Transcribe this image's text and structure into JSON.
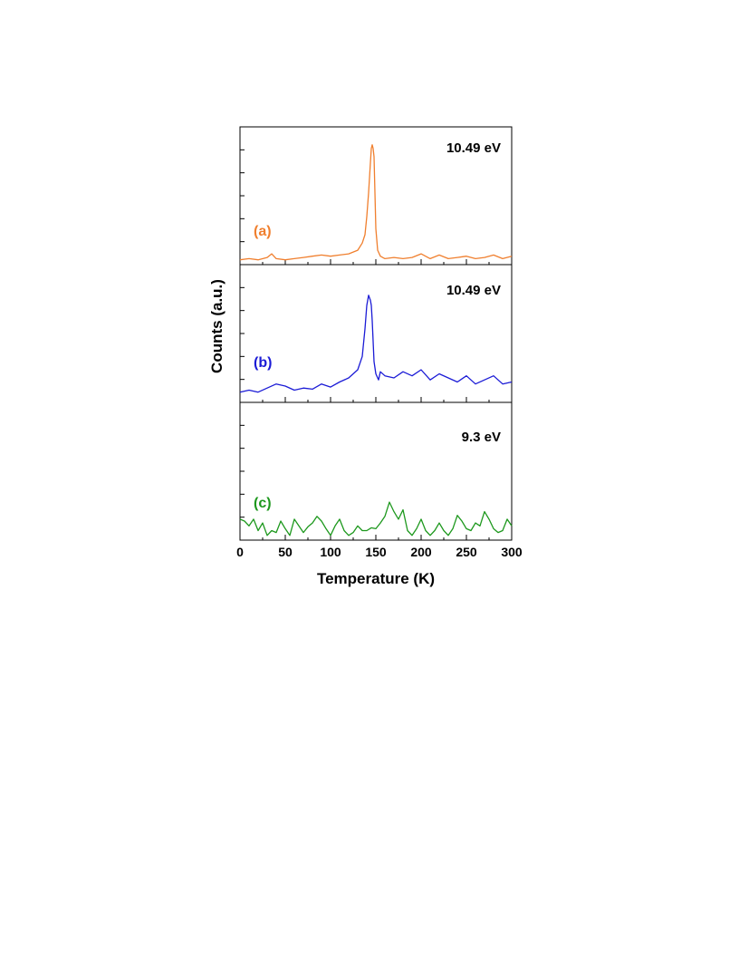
{
  "chart_data": {
    "type": "line",
    "xlabel": "Temperature (K)",
    "ylabel": "Counts (a.u.)",
    "xlim": [
      0,
      300
    ],
    "x_ticks": [
      0,
      50,
      100,
      150,
      200,
      250,
      300
    ],
    "x_tick_labels": [
      "0",
      "50",
      "100",
      "150",
      "200",
      "250",
      "300"
    ],
    "grid": false,
    "panels": [
      {
        "label": "(a)",
        "energy": "10.49 eV",
        "color": "#F07F2E",
        "ylim": [
          0,
          1.15
        ],
        "x": [
          0,
          10,
          20,
          30,
          35,
          40,
          50,
          60,
          70,
          80,
          90,
          100,
          110,
          120,
          130,
          135,
          138,
          140,
          142,
          144,
          145,
          146,
          147,
          148,
          149,
          150,
          152,
          155,
          160,
          170,
          180,
          190,
          200,
          210,
          220,
          230,
          240,
          250,
          260,
          270,
          280,
          290,
          300
        ],
        "y": [
          0.04,
          0.05,
          0.04,
          0.06,
          0.09,
          0.05,
          0.04,
          0.05,
          0.06,
          0.07,
          0.08,
          0.07,
          0.08,
          0.09,
          0.12,
          0.18,
          0.25,
          0.4,
          0.6,
          0.85,
          0.97,
          1.0,
          0.97,
          0.9,
          0.6,
          0.3,
          0.12,
          0.07,
          0.05,
          0.06,
          0.05,
          0.06,
          0.09,
          0.05,
          0.08,
          0.05,
          0.06,
          0.07,
          0.05,
          0.06,
          0.08,
          0.05,
          0.07
        ]
      },
      {
        "label": "(b)",
        "energy": "10.49 eV",
        "color": "#1B1BD6",
        "ylim": [
          0,
          1.35
        ],
        "x": [
          0,
          10,
          20,
          30,
          40,
          50,
          60,
          70,
          80,
          90,
          100,
          110,
          120,
          125,
          130,
          135,
          138,
          140,
          142,
          144,
          145,
          146,
          147,
          148,
          150,
          153,
          155,
          160,
          170,
          180,
          190,
          200,
          210,
          220,
          230,
          240,
          250,
          260,
          270,
          280,
          290,
          300
        ],
        "y": [
          0.1,
          0.12,
          0.1,
          0.14,
          0.18,
          0.16,
          0.12,
          0.14,
          0.13,
          0.18,
          0.15,
          0.2,
          0.24,
          0.28,
          0.32,
          0.45,
          0.72,
          0.95,
          1.05,
          1.0,
          0.95,
          0.8,
          0.6,
          0.4,
          0.28,
          0.22,
          0.3,
          0.26,
          0.24,
          0.3,
          0.26,
          0.32,
          0.22,
          0.28,
          0.24,
          0.2,
          0.26,
          0.18,
          0.22,
          0.26,
          0.18,
          0.2
        ]
      },
      {
        "label": "(c)",
        "energy": "9.3 eV",
        "color": "#1D981D",
        "ylim": [
          0,
          1.45
        ],
        "x": [
          0,
          5,
          10,
          15,
          20,
          25,
          30,
          35,
          40,
          45,
          50,
          55,
          60,
          65,
          70,
          75,
          80,
          85,
          90,
          95,
          100,
          105,
          110,
          115,
          120,
          125,
          130,
          135,
          140,
          145,
          150,
          155,
          160,
          165,
          170,
          175,
          180,
          185,
          190,
          195,
          200,
          205,
          210,
          215,
          220,
          225,
          230,
          235,
          240,
          245,
          250,
          255,
          260,
          265,
          270,
          275,
          280,
          285,
          290,
          295,
          300
        ],
        "y": [
          0.22,
          0.2,
          0.15,
          0.22,
          0.1,
          0.18,
          0.05,
          0.1,
          0.08,
          0.2,
          0.12,
          0.05,
          0.22,
          0.15,
          0.08,
          0.14,
          0.18,
          0.25,
          0.2,
          0.12,
          0.05,
          0.15,
          0.22,
          0.1,
          0.05,
          0.08,
          0.15,
          0.1,
          0.1,
          0.13,
          0.12,
          0.18,
          0.25,
          0.4,
          0.3,
          0.22,
          0.32,
          0.1,
          0.05,
          0.12,
          0.22,
          0.1,
          0.05,
          0.1,
          0.18,
          0.1,
          0.05,
          0.12,
          0.26,
          0.2,
          0.12,
          0.1,
          0.18,
          0.15,
          0.3,
          0.22,
          0.12,
          0.08,
          0.1,
          0.22,
          0.15
        ]
      }
    ]
  }
}
